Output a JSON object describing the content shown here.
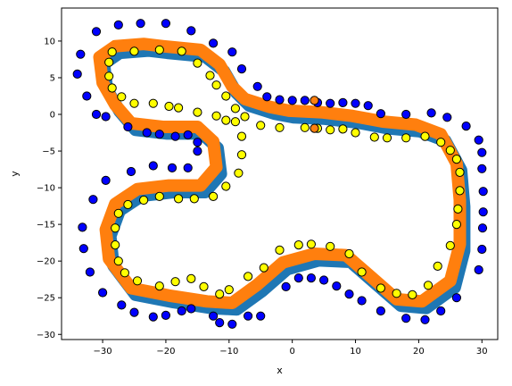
{
  "chart_data": {
    "type": "scatter",
    "title": "",
    "xlabel": "x",
    "ylabel": "y",
    "xlim": [
      -36.5,
      32.5
    ],
    "ylim": [
      -30.7,
      14.5
    ],
    "xticks": [
      -30,
      -20,
      -10,
      0,
      10,
      20,
      30
    ],
    "yticks": [
      10,
      5,
      0,
      -5,
      -10,
      -15,
      -20,
      -25,
      -30
    ],
    "grid": false,
    "legend": "none",
    "track_center": [
      [
        -20,
        9
      ],
      [
        -14,
        8.5
      ],
      [
        -11,
        6.5
      ],
      [
        -9,
        3.5
      ],
      [
        -7,
        1.8
      ],
      [
        -3,
        0.7
      ],
      [
        0,
        0.2
      ],
      [
        5,
        0
      ],
      [
        10,
        -0.5
      ],
      [
        15,
        -1.3
      ],
      [
        20,
        -1.7
      ],
      [
        24,
        -3
      ],
      [
        26.5,
        -7
      ],
      [
        27,
        -12
      ],
      [
        27,
        -18
      ],
      [
        25.5,
        -23
      ],
      [
        21,
        -25.8
      ],
      [
        17,
        -25.5
      ],
      [
        13,
        -22.5
      ],
      [
        9,
        -19.5
      ],
      [
        4,
        -19.3
      ],
      [
        -1,
        -20.5
      ],
      [
        -5,
        -23.5
      ],
      [
        -9,
        -26
      ],
      [
        -13,
        -25.8
      ],
      [
        -19,
        -25
      ],
      [
        -25,
        -24
      ],
      [
        -28.5,
        -20
      ],
      [
        -29,
        -16
      ],
      [
        -27.5,
        -12.5
      ],
      [
        -24,
        -10.5
      ],
      [
        -19,
        -10
      ],
      [
        -14,
        -10
      ],
      [
        -11.5,
        -7.5
      ],
      [
        -12,
        -4
      ],
      [
        -14.5,
        -2
      ],
      [
        -20,
        -2
      ],
      [
        -25,
        -1.5
      ],
      [
        -27.5,
        1
      ],
      [
        -29.5,
        4
      ],
      [
        -30,
        7.5
      ],
      [
        -27.5,
        9
      ],
      [
        -23,
        9.3
      ],
      [
        -20,
        9
      ]
    ],
    "series": [
      {
        "color": "#1f77b4",
        "style": "thick-line",
        "offset": [
          0.2,
          -0.6
        ]
      },
      {
        "color": "#ff7f0e",
        "style": "thick-line",
        "offset": [
          -0.5,
          0.3
        ]
      },
      {
        "color": "#0000ff",
        "marker": "circle",
        "points": [
          [
            -31,
            11.3
          ],
          [
            -27.5,
            12.2
          ],
          [
            -24,
            12.4
          ],
          [
            -20,
            12.4
          ],
          [
            -16,
            11.4
          ],
          [
            -12.5,
            9.7
          ],
          [
            -9.5,
            8.5
          ],
          [
            -8,
            6.2
          ],
          [
            -5.5,
            3.8
          ],
          [
            -4,
            2.4
          ],
          [
            -2,
            2
          ],
          [
            0,
            1.9
          ],
          [
            2,
            1.9
          ],
          [
            4,
            1.6
          ],
          [
            6,
            1.5
          ],
          [
            8,
            1.6
          ],
          [
            10,
            1.5
          ],
          [
            12,
            1.2
          ],
          [
            14,
            0.1
          ],
          [
            18,
            0
          ],
          [
            22,
            0.2
          ],
          [
            24.5,
            -0.4
          ],
          [
            27.5,
            -1.6
          ],
          [
            29.5,
            -3.5
          ],
          [
            30,
            -5.2
          ],
          [
            30,
            -7.4
          ],
          [
            30.2,
            -10.5
          ],
          [
            30.2,
            -13.3
          ],
          [
            30.1,
            -15.5
          ],
          [
            30,
            -18.4
          ],
          [
            29.5,
            -21.2
          ],
          [
            26,
            -25
          ],
          [
            23.5,
            -26.8
          ],
          [
            21,
            -28
          ],
          [
            18,
            -27.8
          ],
          [
            14,
            -26.8
          ],
          [
            11,
            -25.4
          ],
          [
            9,
            -24.5
          ],
          [
            7,
            -23.4
          ],
          [
            5,
            -22.6
          ],
          [
            3,
            -22.3
          ],
          [
            1,
            -22.3
          ],
          [
            -1,
            -23.5
          ],
          [
            -5,
            -27.5
          ],
          [
            -7,
            -27.5
          ],
          [
            -9.5,
            -28.6
          ],
          [
            -11.5,
            -28.4
          ],
          [
            -12.5,
            -27.5
          ],
          [
            -16,
            -26.5
          ],
          [
            -17.5,
            -26.8
          ],
          [
            -20,
            -27.4
          ],
          [
            -22,
            -27.6
          ],
          [
            -25,
            -27
          ],
          [
            -27,
            -26
          ],
          [
            -30,
            -24.3
          ],
          [
            -32,
            -21.5
          ],
          [
            -33,
            -18.3
          ],
          [
            -33.2,
            -15.4
          ],
          [
            -31.5,
            -11.6
          ],
          [
            -29.5,
            -9
          ],
          [
            -25.5,
            -7.8
          ],
          [
            -22,
            -7
          ],
          [
            -19,
            -7.3
          ],
          [
            -16.5,
            -7.3
          ],
          [
            -15,
            -5
          ],
          [
            -15,
            -3.8
          ],
          [
            -16.5,
            -2.8
          ],
          [
            -18.5,
            -3
          ],
          [
            -21,
            -2.7
          ],
          [
            -23,
            -2.5
          ],
          [
            -26,
            -1.7
          ],
          [
            -29.5,
            -0.3
          ],
          [
            -31,
            0
          ],
          [
            -32.5,
            2.5
          ],
          [
            -34,
            5.5
          ],
          [
            -33.5,
            8.2
          ]
        ]
      },
      {
        "color": "#ffff00",
        "marker": "circle",
        "points": [
          [
            -28.5,
            8.5
          ],
          [
            -25,
            8.6
          ],
          [
            -21,
            8.8
          ],
          [
            -17.5,
            8.6
          ],
          [
            -15,
            7
          ],
          [
            -13,
            5.3
          ],
          [
            -12,
            4
          ],
          [
            -10.5,
            2.5
          ],
          [
            -9,
            0.8
          ],
          [
            -7.5,
            -0.3
          ],
          [
            -5,
            -1.5
          ],
          [
            -2,
            -1.8
          ],
          [
            2,
            -1.8
          ],
          [
            4,
            -1.9
          ],
          [
            6,
            -2.1
          ],
          [
            8,
            -2
          ],
          [
            10,
            -2.5
          ],
          [
            13,
            -3.1
          ],
          [
            15,
            -3.2
          ],
          [
            18,
            -3.2
          ],
          [
            21,
            -3
          ],
          [
            23.5,
            -3.8
          ],
          [
            25,
            -4.9
          ],
          [
            26,
            -6.1
          ],
          [
            26.5,
            -7.9
          ],
          [
            26.5,
            -10.4
          ],
          [
            26.2,
            -12.9
          ],
          [
            26,
            -15
          ],
          [
            25,
            -17.9
          ],
          [
            23,
            -20.7
          ],
          [
            21.5,
            -23.3
          ],
          [
            19,
            -24.6
          ],
          [
            16.5,
            -24.4
          ],
          [
            14,
            -23.7
          ],
          [
            11,
            -21.5
          ],
          [
            9,
            -19
          ],
          [
            6,
            -18
          ],
          [
            3,
            -17.7
          ],
          [
            1,
            -17.8
          ],
          [
            -2,
            -18.5
          ],
          [
            -4.5,
            -20.9
          ],
          [
            -7,
            -22.1
          ],
          [
            -10,
            -23.9
          ],
          [
            -11.5,
            -24.5
          ],
          [
            -14,
            -23.5
          ],
          [
            -16,
            -22.4
          ],
          [
            -18.5,
            -22.8
          ],
          [
            -21,
            -23.4
          ],
          [
            -24.5,
            -22.7
          ],
          [
            -26.5,
            -21.6
          ],
          [
            -27.5,
            -20
          ],
          [
            -28,
            -17.8
          ],
          [
            -28,
            -15.5
          ],
          [
            -27.5,
            -13.5
          ],
          [
            -26,
            -12.3
          ],
          [
            -23.5,
            -11.7
          ],
          [
            -21,
            -11.2
          ],
          [
            -18,
            -11.5
          ],
          [
            -15.5,
            -11.5
          ],
          [
            -12.5,
            -11.2
          ],
          [
            -10.5,
            -9.8
          ],
          [
            -8.5,
            -8
          ],
          [
            -8,
            -5.5
          ],
          [
            -8,
            -3
          ],
          [
            -9,
            -1
          ],
          [
            -10.5,
            -0.8
          ],
          [
            -12,
            -0.2
          ],
          [
            -15,
            0.3
          ],
          [
            -18,
            0.9
          ],
          [
            -19.5,
            1.1
          ],
          [
            -22,
            1.5
          ],
          [
            -25,
            1.5
          ],
          [
            -27,
            2.4
          ],
          [
            -28.5,
            3.6
          ],
          [
            -29,
            5.2
          ],
          [
            -29,
            7.1
          ]
        ]
      },
      {
        "color": "#ff7f0e",
        "marker": "circle",
        "points": [
          [
            3.5,
            1.9
          ],
          [
            3.5,
            -1.9
          ]
        ]
      }
    ]
  }
}
